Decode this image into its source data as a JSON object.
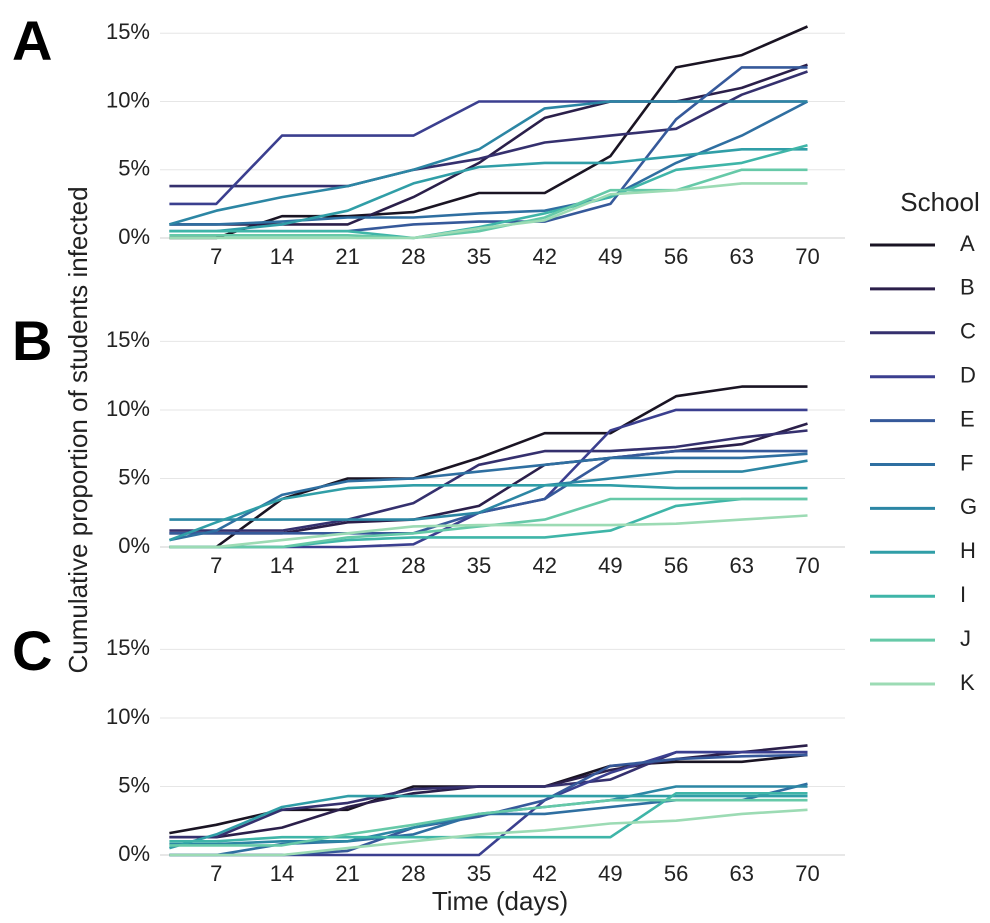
{
  "y_label": "Cumulative proportion of students infected",
  "x_label": "Time (days)",
  "legend_title": "School",
  "chart_data": [
    {
      "type": "line",
      "panel_label": "A",
      "x": [
        2,
        7,
        14,
        21,
        28,
        35,
        42,
        49,
        56,
        63,
        70
      ],
      "xlim": [
        1,
        74
      ],
      "xticks": [
        7,
        14,
        21,
        28,
        35,
        42,
        49,
        56,
        63,
        70
      ],
      "ylim": [
        0,
        17
      ],
      "yticks": [
        {
          "value": 0,
          "label": "0%"
        },
        {
          "value": 5,
          "label": "5%"
        },
        {
          "value": 10,
          "label": "10%"
        },
        {
          "value": 15,
          "label": "15%"
        }
      ],
      "grid": true,
      "series": [
        {
          "name": "A",
          "color": "#1a1423",
          "values": [
            0,
            0,
            1.6,
            1.6,
            1.9,
            3.3,
            3.3,
            6,
            12.5,
            13.4,
            15.5
          ]
        },
        {
          "name": "B",
          "color": "#2b1f4a",
          "values": [
            1,
            1,
            1,
            1,
            3,
            5.5,
            8.8,
            10,
            10,
            11,
            12.7
          ]
        },
        {
          "name": "C",
          "color": "#35306e",
          "values": [
            3.8,
            3.8,
            3.8,
            3.8,
            5,
            5.8,
            7,
            7.5,
            8,
            10.5,
            12.2
          ]
        },
        {
          "name": "D",
          "color": "#3b3f8f",
          "values": [
            2.5,
            2.5,
            7.5,
            7.5,
            7.5,
            10,
            10,
            10,
            10,
            10,
            10
          ]
        },
        {
          "name": "E",
          "color": "#36599a",
          "values": [
            0.5,
            0.5,
            0.5,
            0.5,
            1,
            1.2,
            1.2,
            2.5,
            8.7,
            12.5,
            12.5
          ]
        },
        {
          "name": "F",
          "color": "#2f6fa1",
          "values": [
            1,
            1,
            1.2,
            1.5,
            1.5,
            1.8,
            2,
            3,
            5.5,
            7.5,
            10
          ]
        },
        {
          "name": "G",
          "color": "#2c86a4",
          "values": [
            1,
            2,
            3,
            3.8,
            5,
            6.5,
            9.5,
            10,
            10,
            10,
            10
          ]
        },
        {
          "name": "H",
          "color": "#309ea7",
          "values": [
            0.5,
            0.5,
            1,
            2,
            4,
            5.2,
            5.5,
            5.5,
            6,
            6.5,
            6.5
          ]
        },
        {
          "name": "I",
          "color": "#3fb5a8",
          "values": [
            0.5,
            0.5,
            0.5,
            0.5,
            0,
            0.8,
            1.8,
            3,
            5,
            5.5,
            6.8
          ]
        },
        {
          "name": "J",
          "color": "#66c9a8",
          "values": [
            0.2,
            0.2,
            0.2,
            0.2,
            0,
            0.5,
            1.5,
            3.5,
            3.5,
            5,
            5
          ]
        },
        {
          "name": "K",
          "color": "#9cdbb4",
          "values": [
            0,
            0,
            0,
            0,
            0,
            0.7,
            1.3,
            3.2,
            3.5,
            4,
            4
          ]
        }
      ]
    },
    {
      "type": "line",
      "panel_label": "B",
      "x": [
        2,
        7,
        14,
        21,
        28,
        35,
        42,
        49,
        56,
        63,
        70
      ],
      "xlim": [
        1,
        74
      ],
      "xticks": [
        7,
        14,
        21,
        28,
        35,
        42,
        49,
        56,
        63,
        70
      ],
      "ylim": [
        0,
        17
      ],
      "yticks": [
        {
          "value": 0,
          "label": "0%"
        },
        {
          "value": 5,
          "label": "5%"
        },
        {
          "value": 10,
          "label": "10%"
        },
        {
          "value": 15,
          "label": "15%"
        }
      ],
      "grid": true,
      "series": [
        {
          "color": "#1a1423",
          "values": [
            0,
            0,
            3.5,
            5,
            5,
            6.5,
            8.3,
            8.3,
            11,
            11.7,
            11.7
          ]
        },
        {
          "color": "#2b1f4a",
          "values": [
            1,
            1,
            1,
            1.8,
            2,
            3,
            6,
            6.5,
            7,
            7.5,
            9
          ]
        },
        {
          "color": "#35306e",
          "values": [
            1.2,
            1.2,
            1.2,
            2,
            3.2,
            6,
            7,
            7,
            7.3,
            8,
            8.5
          ]
        },
        {
          "color": "#3b3f8f",
          "values": [
            0,
            0,
            0,
            0,
            0.2,
            2.5,
            3.5,
            8.5,
            10,
            10,
            10
          ]
        },
        {
          "color": "#36599a",
          "values": [
            1,
            1,
            1,
            1,
            1,
            2.5,
            3.5,
            6.5,
            7,
            7,
            7
          ]
        },
        {
          "color": "#2f6fa1",
          "values": [
            0.5,
            1.2,
            3.8,
            4.8,
            5,
            5.5,
            6,
            6.5,
            6.5,
            6.5,
            6.8
          ]
        },
        {
          "color": "#2c86a4",
          "values": [
            2,
            2,
            2,
            2,
            2,
            2.5,
            4.5,
            5,
            5.5,
            5.5,
            6.3
          ]
        },
        {
          "color": "#309ea7",
          "values": [
            0.5,
            1.8,
            3.5,
            4.3,
            4.5,
            4.5,
            4.5,
            4.5,
            4.3,
            4.3,
            4.3
          ]
        },
        {
          "color": "#3fb5a8",
          "values": [
            0,
            0,
            0,
            0.5,
            0.7,
            0.7,
            0.7,
            1.2,
            3,
            3.5,
            3.5
          ]
        },
        {
          "color": "#66c9a8",
          "values": [
            0,
            0,
            0,
            0.7,
            1,
            1.5,
            2,
            3.5,
            3.5,
            3.5,
            3.5
          ]
        },
        {
          "color": "#9cdbb4",
          "values": [
            0,
            0,
            0.5,
            1,
            1.5,
            1.6,
            1.6,
            1.6,
            1.7,
            2,
            2.3
          ]
        }
      ]
    },
    {
      "type": "line",
      "panel_label": "C",
      "x": [
        2,
        7,
        14,
        21,
        28,
        35,
        42,
        49,
        56,
        63,
        70
      ],
      "xlim": [
        1,
        74
      ],
      "xticks": [
        7,
        14,
        21,
        28,
        35,
        42,
        49,
        56,
        63,
        70
      ],
      "ylim": [
        0,
        17
      ],
      "yticks": [
        {
          "value": 0,
          "label": "0%"
        },
        {
          "value": 5,
          "label": "5%"
        },
        {
          "value": 10,
          "label": "10%"
        },
        {
          "value": 15,
          "label": "15%"
        }
      ],
      "grid": true,
      "series": [
        {
          "color": "#1a1423",
          "values": [
            1.6,
            2.2,
            3.3,
            3.3,
            5,
            5,
            5,
            6.5,
            6.8,
            6.8,
            7.3
          ]
        },
        {
          "color": "#2b1f4a",
          "values": [
            1.3,
            1.3,
            2,
            3.5,
            4.5,
            5,
            5,
            6.2,
            7,
            7.5,
            8
          ]
        },
        {
          "color": "#35306e",
          "values": [
            1.3,
            1.3,
            3.3,
            3.8,
            4.8,
            5,
            5,
            5.5,
            7.5,
            7.5,
            7.5
          ]
        },
        {
          "color": "#3b3f8f",
          "values": [
            0,
            0,
            0,
            0,
            0,
            0,
            4,
            6,
            7.5,
            7.5,
            7.5
          ]
        },
        {
          "color": "#36599a",
          "values": [
            0,
            0,
            0,
            0.3,
            2,
            2.8,
            4,
            6.5,
            7,
            7.2,
            7.3
          ]
        },
        {
          "color": "#2f6fa1",
          "values": [
            0,
            0,
            0.8,
            1,
            1.5,
            3,
            3,
            3.5,
            4,
            4,
            5.2
          ]
        },
        {
          "color": "#2c86a4",
          "values": [
            0.8,
            0.8,
            1,
            1,
            2,
            3,
            3.5,
            4,
            5,
            5,
            5
          ]
        },
        {
          "color": "#309ea7",
          "values": [
            0.5,
            1.5,
            3.5,
            4.3,
            4.3,
            4.3,
            4.3,
            4.3,
            4.3,
            4.3,
            4.3
          ]
        },
        {
          "color": "#3fb5a8",
          "values": [
            1,
            1,
            1.3,
            1.3,
            1.3,
            1.3,
            1.3,
            1.3,
            4.5,
            4.5,
            4.5
          ]
        },
        {
          "color": "#66c9a8",
          "values": [
            0.7,
            0.7,
            0.7,
            1.5,
            2.2,
            3,
            3.5,
            4,
            4,
            4,
            4
          ]
        },
        {
          "color": "#9cdbb4",
          "values": [
            0,
            0,
            0,
            0.5,
            1,
            1.5,
            1.8,
            2.3,
            2.5,
            3,
            3.3
          ]
        }
      ]
    }
  ]
}
